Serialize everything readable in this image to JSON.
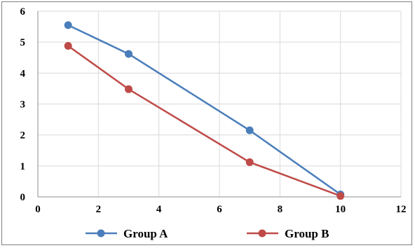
{
  "chart_data": {
    "type": "line",
    "title": "",
    "xlabel": "",
    "ylabel": "",
    "xlim": [
      0,
      12
    ],
    "ylim": [
      0,
      6
    ],
    "x_ticks": [
      "0",
      "2",
      "4",
      "6",
      "8",
      "10",
      "12"
    ],
    "y_ticks": [
      "0",
      "1",
      "2",
      "3",
      "4",
      "5",
      "6"
    ],
    "grid": true,
    "legend_position": "bottom",
    "series": [
      {
        "name": "Group A",
        "color": "#4a7ebb",
        "points": [
          {
            "x": 1,
            "y": 5.55
          },
          {
            "x": 3,
            "y": 4.62
          },
          {
            "x": 7,
            "y": 2.15
          },
          {
            "x": 10,
            "y": 0.08
          }
        ]
      },
      {
        "name": "Group B",
        "color": "#be4b48",
        "points": [
          {
            "x": 1,
            "y": 4.88
          },
          {
            "x": 3,
            "y": 3.48
          },
          {
            "x": 7,
            "y": 1.12
          },
          {
            "x": 10,
            "y": 0.03
          }
        ]
      }
    ]
  }
}
